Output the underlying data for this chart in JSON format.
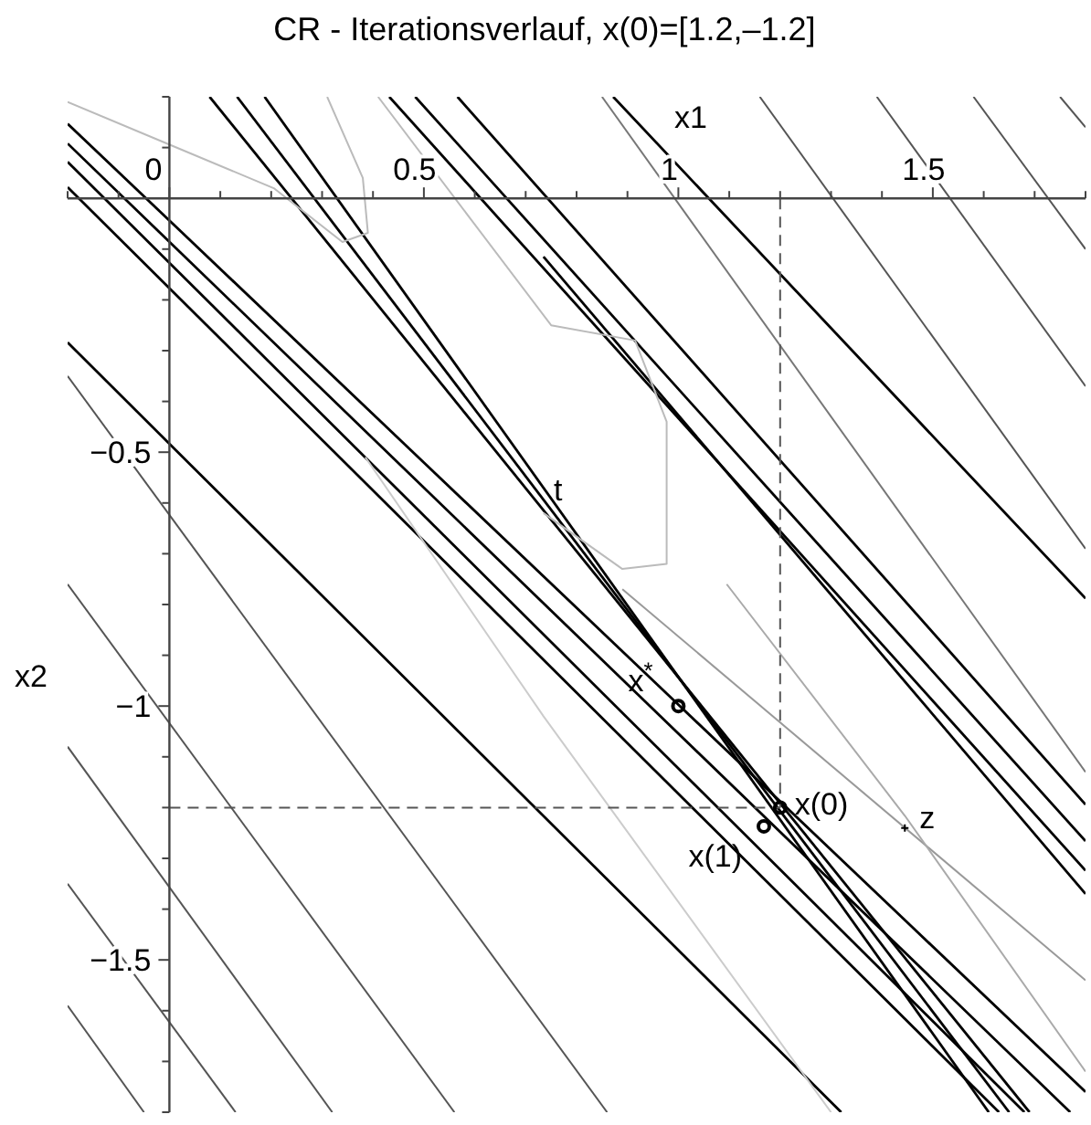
{
  "chart_data": {
    "type": "line",
    "title": "CR - Iterationsverlauf, x(0)=[1.2,–1.2]",
    "xlabel": "x1",
    "ylabel": "x2",
    "xlim": [
      -0.2,
      1.8
    ],
    "ylim": [
      -1.8,
      0.2
    ],
    "xticks": [
      {
        "value": -0.2,
        "label": null
      },
      {
        "value": -0.1,
        "label": null
      },
      0,
      {
        "value": 0.1,
        "label": null
      },
      {
        "value": 0.2,
        "label": null
      },
      {
        "value": 0.3,
        "label": null
      },
      {
        "value": 0.4,
        "label": null
      },
      0.5,
      {
        "value": 0.6,
        "label": null
      },
      {
        "value": 0.7,
        "label": null
      },
      {
        "value": 0.8,
        "label": null
      },
      {
        "value": 0.9,
        "label": null
      },
      1,
      {
        "value": 1.1,
        "label": null
      },
      {
        "value": 1.2,
        "label": null
      },
      {
        "value": 1.3,
        "label": null
      },
      {
        "value": 1.4,
        "label": null
      },
      1.5,
      {
        "value": 1.6,
        "label": null
      },
      {
        "value": 1.7,
        "label": null
      },
      {
        "value": 1.8,
        "label": null
      }
    ],
    "yticks": [
      {
        "value": 0.2,
        "label": null
      },
      {
        "value": 0.1,
        "label": null
      },
      {
        "value": -0.1,
        "label": null
      },
      {
        "value": -0.2,
        "label": null
      },
      {
        "value": -0.3,
        "label": null
      },
      {
        "value": -0.4,
        "label": null
      },
      {
        "value": -0.5,
        "label": "−0.5"
      },
      {
        "value": -0.6,
        "label": null
      },
      {
        "value": -0.7,
        "label": null
      },
      {
        "value": -0.8,
        "label": null
      },
      {
        "value": -0.9,
        "label": null
      },
      {
        "value": -1,
        "label": "−1"
      },
      {
        "value": -1.1,
        "label": null
      },
      {
        "value": -1.2,
        "label": null
      },
      {
        "value": -1.3,
        "label": null
      },
      {
        "value": -1.4,
        "label": null
      },
      {
        "value": -1.5,
        "label": "−1.5"
      },
      {
        "value": -1.6,
        "label": null
      },
      {
        "value": -1.7,
        "label": null
      },
      {
        "value": -1.8,
        "label": null
      }
    ],
    "grid": false,
    "marker": "none",
    "line_style": "solid",
    "series": [
      {
        "color": "#555555",
        "x": [
          -0.2,
          0.56
        ],
        "values": [
          -0.76,
          -1.8
        ]
      },
      {
        "color": "#555555",
        "x": [
          -0.2,
          0.86
        ],
        "values": [
          -0.35,
          -1.8
        ]
      },
      {
        "color": "#555555",
        "x": [
          -0.2,
          0.32
        ],
        "values": [
          -1.08,
          -1.8
        ]
      },
      {
        "color": "#555555",
        "x": [
          -0.2,
          0.13
        ],
        "values": [
          -1.35,
          -1.8
        ]
      },
      {
        "color": "#555555",
        "x": [
          -0.2,
          -0.05
        ],
        "values": [
          -1.59,
          -1.8
        ]
      },
      {
        "color": "#555555",
        "x": [
          1.16,
          1.8
        ],
        "values": [
          0.2,
          -0.69
        ]
      },
      {
        "color": "#555555",
        "x": [
          1.39,
          1.8
        ],
        "values": [
          0.2,
          -0.37
        ]
      },
      {
        "color": "#555555",
        "x": [
          1.58,
          1.8
        ],
        "values": [
          0.2,
          -0.1
        ]
      },
      {
        "color": "#555555",
        "x": [
          1.75,
          1.8
        ],
        "values": [
          0.2,
          0.14
        ]
      },
      {
        "color": "#777777",
        "x": [
          0.85,
          1.8
        ],
        "values": [
          0.2,
          -1.13
        ]
      },
      {
        "color": "#000000",
        "x": [
          -0.2,
          1.8
        ],
        "values": [
          0.147,
          -1.76
        ]
      },
      {
        "color": "#000000",
        "x": [
          -0.2,
          1.77
        ],
        "values": [
          0.108,
          -1.8
        ]
      },
      {
        "color": "#000000",
        "x": [
          -0.2,
          1.68
        ],
        "values": [
          0.072,
          -1.8
        ]
      },
      {
        "color": "#000000",
        "x": [
          -0.2,
          1.63
        ],
        "values": [
          0.022,
          -1.8
        ]
      },
      {
        "color": "#000000",
        "x": [
          -0.2,
          1.32
        ],
        "values": [
          -0.284,
          -1.8
        ]
      },
      {
        "color": "#000000",
        "x": [
          0.079,
          1.69
        ],
        "values": [
          0.2,
          -1.8
        ]
      },
      {
        "color": "#000000",
        "x": [
          0.133,
          1.65
        ],
        "values": [
          0.2,
          -1.8
        ]
      },
      {
        "color": "#000000",
        "x": [
          0.187,
          1.61
        ],
        "values": [
          0.2,
          -1.8
        ]
      },
      {
        "color": "#000000",
        "x": [
          0.432,
          1.8
        ],
        "values": [
          0.2,
          -1.324
        ]
      },
      {
        "color": "#000000",
        "x": [
          0.483,
          1.8
        ],
        "values": [
          0.2,
          -1.266
        ]
      },
      {
        "color": "#000000",
        "x": [
          0.566,
          1.8
        ],
        "values": [
          0.2,
          -1.194
        ]
      },
      {
        "color": "#000000",
        "x": [
          0.872,
          1.8
        ],
        "values": [
          0.2,
          -0.788
        ]
      },
      {
        "color": "#000000",
        "x": [
          0.735,
          1.8
        ],
        "values": [
          -0.115,
          -1.37
        ]
      },
      {
        "color": "#bbbbbb",
        "x": [
          -0.2,
          -0.01,
          0.205,
          0.34,
          0.39,
          0.38,
          0.31
        ],
        "values": [
          0.19,
          0.11,
          0.02,
          -0.086,
          -0.068,
          0.04,
          0.2
        ]
      },
      {
        "color": "#bbbbbb",
        "x": [
          0.41,
          0.75,
          0.915,
          0.977,
          0.977,
          0.89,
          0.735
        ],
        "values": [
          0.2,
          -0.25,
          -0.28,
          -0.44,
          -0.72,
          -0.73,
          -0.62
        ]
      },
      {
        "color": "#cccccc",
        "x": [
          0.385,
          0.735,
          1.3
        ],
        "values": [
          -0.51,
          -1.02,
          -1.8
        ]
      },
      {
        "color": "#999999",
        "x": [
          0.89,
          1.8
        ],
        "values": [
          -0.77,
          -1.54
        ]
      },
      {
        "color": "#aaaaaa",
        "x": [
          1.095,
          1.445,
          1.8
        ],
        "values": [
          -0.76,
          -1.216,
          -1.72
        ]
      },
      {
        "color": "#555555",
        "line_style": "dashed",
        "x": [
          1.2,
          1.2
        ],
        "values": [
          0,
          -1.2
        ]
      },
      {
        "color": "#555555",
        "line_style": "dashed",
        "x": [
          0,
          1.2
        ],
        "values": [
          -1.2,
          -1.2
        ]
      },
      {
        "type": "scatter",
        "marker": "circle",
        "color": "#000000",
        "x": [
          1.2,
          1.168,
          1
        ],
        "values": [
          -1.2,
          -1.237,
          -1
        ]
      },
      {
        "type": "scatter",
        "marker": "cross",
        "color": "#000000",
        "x": [
          1.445
        ],
        "values": [
          -1.24
        ]
      }
    ],
    "annotations": [
      {
        "text": "x(0)",
        "x": 1.2,
        "y": -1.2
      },
      {
        "text": "x(1)",
        "x": 1.168,
        "y": -1.237
      },
      {
        "text": "x$^{*}$",
        "x": 1,
        "y": -1
      },
      {
        "text": "z",
        "x": 1.445,
        "y": -1.24
      },
      "t"
    ]
  }
}
